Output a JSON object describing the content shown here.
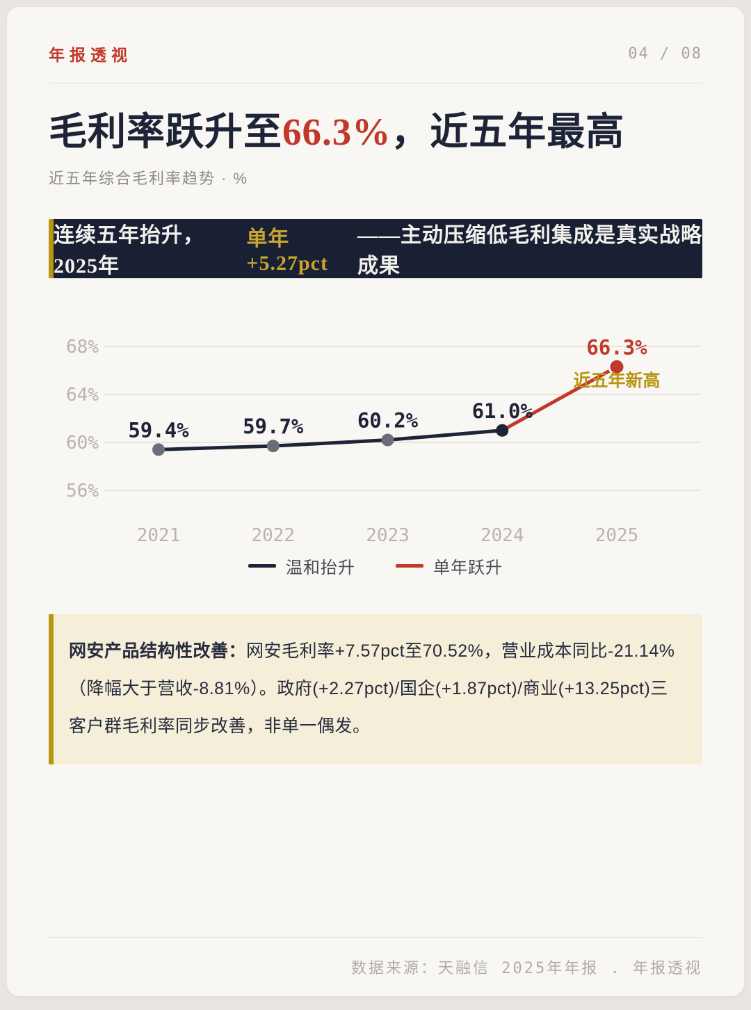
{
  "header": {
    "brand": "年报透视",
    "page_indicator": "04 / 08"
  },
  "title": {
    "pre": "毛利率跃升至",
    "highlight": "66.3%",
    "post": "，近五年最高"
  },
  "subtitle": "近五年综合毛利率趋势 · %",
  "banner": {
    "pre": "连续五年抬升，2025年",
    "highlight": "单年+5.27pct",
    "post": "——主动压缩低毛利集成是真实战略成果"
  },
  "chart_data": {
    "type": "line",
    "categories": [
      "2021",
      "2022",
      "2023",
      "2024",
      "2025"
    ],
    "values": [
      59.4,
      59.7,
      60.2,
      61.0,
      66.3
    ],
    "point_labels": [
      "59.4%",
      "59.7%",
      "60.2%",
      "61.0%",
      "66.3%"
    ],
    "yticks": [
      56,
      60,
      64,
      68
    ],
    "ytick_labels": [
      "56%",
      "60%",
      "64%",
      "68%"
    ],
    "ylim": [
      53.5,
      70
    ],
    "grid": true,
    "legend_position": "bottom",
    "line_color": "#1e2438",
    "jump_color": "#c0392b",
    "jump_from_index": 3,
    "point_colors": [
      "#6a6e79",
      "#6a6e79",
      "#6a6e79",
      "#1e2438",
      "#c0392b"
    ],
    "label_colors": [
      "#1e2438",
      "#1e2438",
      "#1e2438",
      "#1e2438",
      "#c0392b"
    ],
    "legend": [
      {
        "label": "温和抬升",
        "color": "#1e2438"
      },
      {
        "label": "单年跃升",
        "color": "#c0392b"
      }
    ],
    "annotation": {
      "index": 4,
      "text": "近五年新高",
      "color": "#b8960f"
    }
  },
  "insight": {
    "lead": "网安产品结构性改善：",
    "body": "网安毛利率+7.57pct至70.52%，营业成本同比-21.14%（降幅大于营收-8.81%）。政府(+2.27pct)/国企(+1.87pct)/商业(+13.25pct)三客户群毛利率同步改善，非单一偶发。"
  },
  "footer": {
    "source": "数据来源：天融信 2025年年报 . 年报透视"
  },
  "colors": {
    "accent_red": "#c0392b",
    "gold": "#b8960f",
    "banner_gold": "#c9a42f",
    "navy": "#1e2438",
    "banner_bg": "#1a2034",
    "card_bg": "#f8f7f3",
    "cream": "#f5eed8"
  }
}
